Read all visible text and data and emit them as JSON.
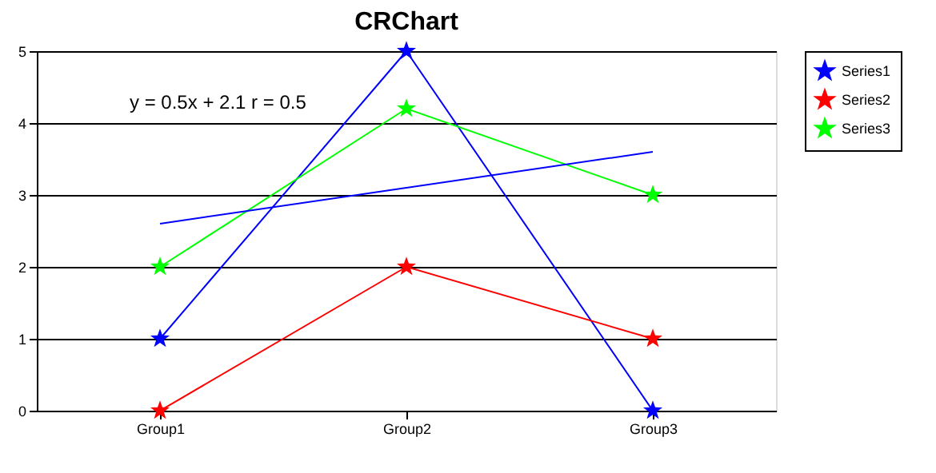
{
  "chart_data": {
    "type": "line",
    "title": "CRChart",
    "categories": [
      "Group1",
      "Group2",
      "Group3"
    ],
    "series": [
      {
        "name": "Series1",
        "color": "#0000ff",
        "values": [
          1,
          5,
          0
        ]
      },
      {
        "name": "Series2",
        "color": "#ff0000",
        "values": [
          0,
          2,
          1
        ]
      },
      {
        "name": "Series3",
        "color": "#00ff00",
        "values": [
          2,
          4.2,
          3
        ]
      },
      {
        "type": "line",
        "color": "#0000ff",
        "values": [
          2.6,
          3.1,
          3.6
        ],
        "marker": "none"
      }
    ],
    "annotations": [
      "y = 0.5x + 2.1 r = 0.5"
    ],
    "ylim": [
      0,
      5
    ],
    "yticks": [
      0,
      1,
      2,
      3,
      4,
      5
    ],
    "grid": "y",
    "legend": "right",
    "marker": "star",
    "line_style": "solid"
  }
}
